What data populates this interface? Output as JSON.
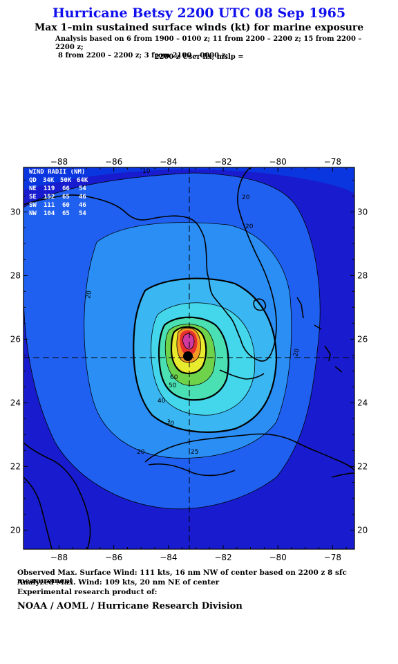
{
  "header": {
    "title": "Hurricane Betsy 2200 UTC 08 Sep 1965",
    "subtitle": "Max 1–min sustained surface winds (kt) for marine exposure",
    "analysis_line1": "Analysis based on  6 from 1900 – 0100 z;  11 from 2200 – 2200 z;  15 from 2200 – 2200 z;",
    "analysis_line2": "8 from 2200 – 2200 z;  3 from 2100 – 0000 z;",
    "user_flx": "2200 z User flx; mslp ="
  },
  "wind_radii": {
    "title": "WIND RADII (NM)",
    "header": [
      "QD",
      "34K",
      "50K",
      "64K"
    ],
    "rows": [
      {
        "qd": "NE",
        "k34": "119",
        "k50": "66",
        "k64": "54"
      },
      {
        "qd": "SE",
        "k34": "152",
        "k50": "65",
        "k64": "46"
      },
      {
        "qd": "SW",
        "k34": "111",
        "k50": "60",
        "k64": "46"
      },
      {
        "qd": "NW",
        "k34": "104",
        "k50": "65",
        "k64": "54"
      }
    ]
  },
  "chart_data": {
    "type": "heatmap",
    "xlim": [
      -89.3,
      -77.2
    ],
    "ylim": [
      19.4,
      31.4
    ],
    "x_ticks": [
      -88,
      -86,
      -84,
      -82,
      -80,
      -78
    ],
    "y_ticks": [
      20,
      22,
      24,
      26,
      28,
      30
    ],
    "x_tick_labels": [
      "−88",
      "−86",
      "−84",
      "−82",
      "−80",
      "−78"
    ],
    "y_tick_labels": [
      "20",
      "22",
      "24",
      "26",
      "28",
      "30"
    ],
    "center": {
      "lon": -83.2,
      "lat": 25.4
    },
    "contour_labels": [
      "20",
      "20",
      "20",
      "20",
      "20",
      "30",
      "40",
      "50",
      "60",
      "25",
      "10"
    ],
    "max_wind_kt": 109,
    "colors": {
      "background": "#0a36e0",
      "band_10": "#1a1acc",
      "band_20": "#2060f0",
      "band_30": "#2a8ef5",
      "band_40": "#3ab6f2",
      "band_50": "#44d6ea",
      "band_60": "#4ae0b4",
      "band_70": "#6ed24a",
      "band_80": "#e8ea2e",
      "band_90": "#f59a22",
      "band_100": "#e8302e",
      "band_110": "#d03aa0"
    }
  },
  "footer": {
    "observed": "Observed Max. Surface Wind: 111 kts, 16 nm NW of center based on 2200 z 8 sfc measurement",
    "analyzed": "Analyzed Max. Wind: 109 kts, 20 nm NE of center",
    "experimental": "Experimental research product of:",
    "org": "NOAA / AOML / Hurricane Research Division"
  }
}
